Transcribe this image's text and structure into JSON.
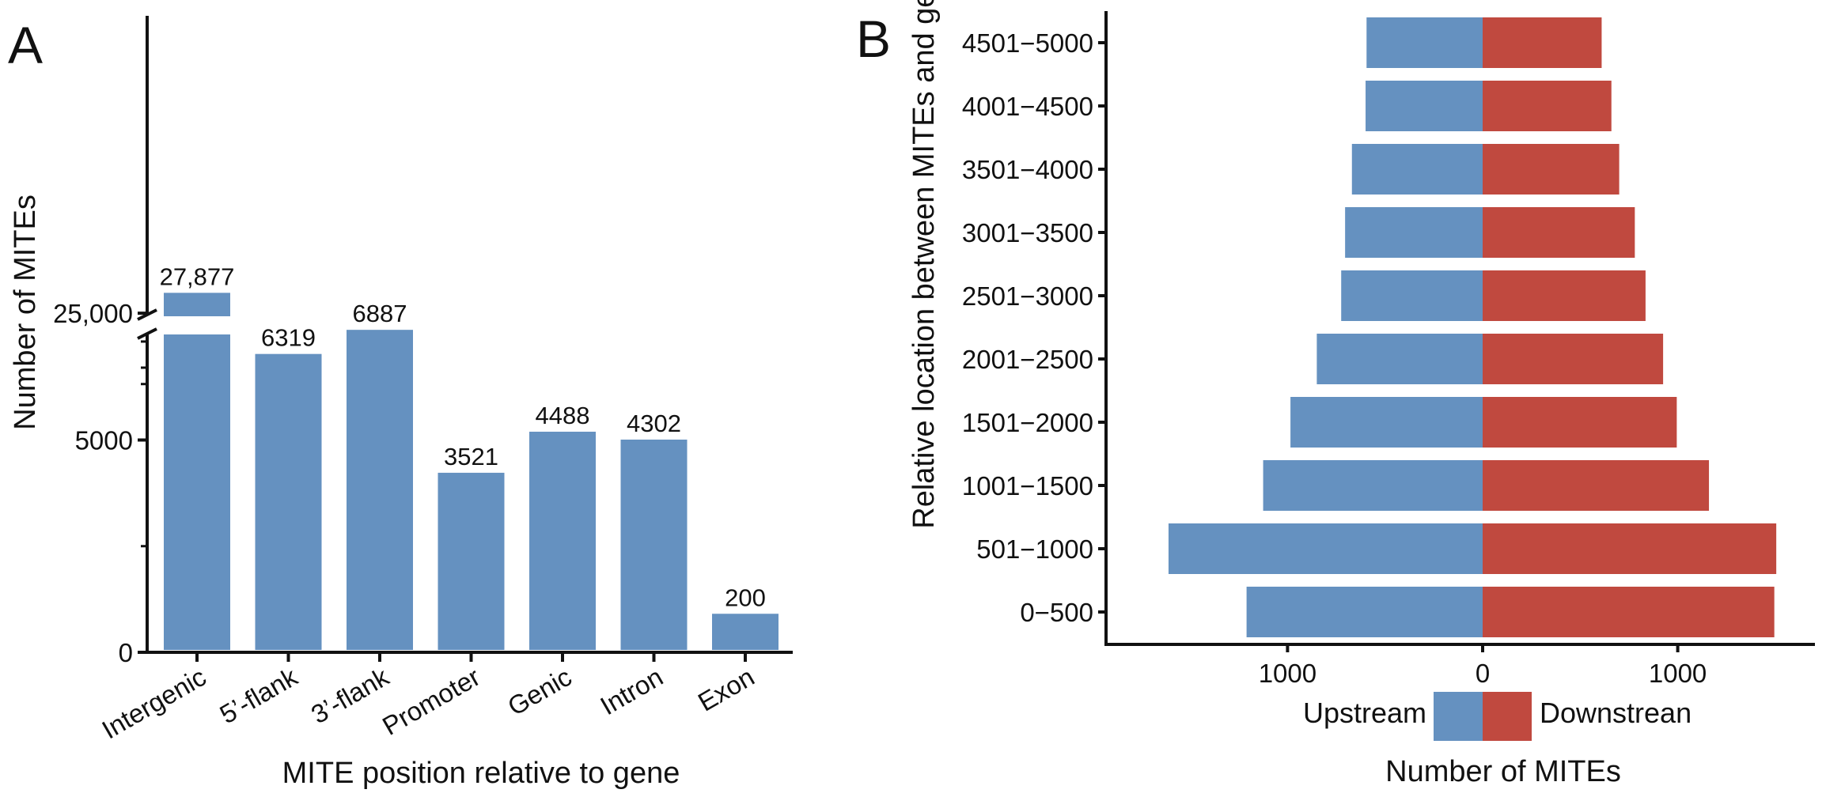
{
  "chart_data": [
    {
      "panel": "A",
      "type": "bar",
      "title": "",
      "xlabel": "MITE position relative to gene",
      "ylabel": "Number of MITEs",
      "axis_break": true,
      "yticks": [
        {
          "value": 0,
          "label": "0"
        },
        {
          "value": 5000,
          "label": "5000"
        },
        {
          "value": 25000,
          "label": "25,000"
        }
      ],
      "categories": [
        "Intergenic",
        "5’-flank",
        "3’-flank",
        "Promoter",
        "Genic",
        "Intron",
        "Exon"
      ],
      "values": [
        27877,
        6319,
        6887,
        3521,
        4488,
        4302,
        200
      ],
      "value_labels": [
        "27,877",
        "6319",
        "6887",
        "3521",
        "4488",
        "4302",
        "200"
      ],
      "color": "#6591c0"
    },
    {
      "panel": "B",
      "type": "bar",
      "orientation": "horizontal-diverging",
      "title": "",
      "xlabel": "Number of MITEs",
      "ylabel": "Relative location between MITEs and genes",
      "xticks": [
        {
          "value": -1000,
          "label": "1000"
        },
        {
          "value": 0,
          "label": "0"
        },
        {
          "value": 1000,
          "label": "1000"
        }
      ],
      "xlim": [
        -1900,
        1700
      ],
      "categories": [
        "0−500",
        "501−1000",
        "1001−1500",
        "1501−2000",
        "2001−2500",
        "2501−3000",
        "3001−3500",
        "3501−4000",
        "4001−4500",
        "4501−5000"
      ],
      "series": [
        {
          "name": "Upstream",
          "color": "#6591c0",
          "values": [
            1210,
            1610,
            1125,
            985,
            850,
            725,
            705,
            670,
            600,
            595
          ]
        },
        {
          "name": "Downstrean",
          "color": "#c0493f",
          "values": [
            1495,
            1505,
            1160,
            995,
            925,
            835,
            780,
            700,
            660,
            610
          ]
        }
      ]
    }
  ]
}
